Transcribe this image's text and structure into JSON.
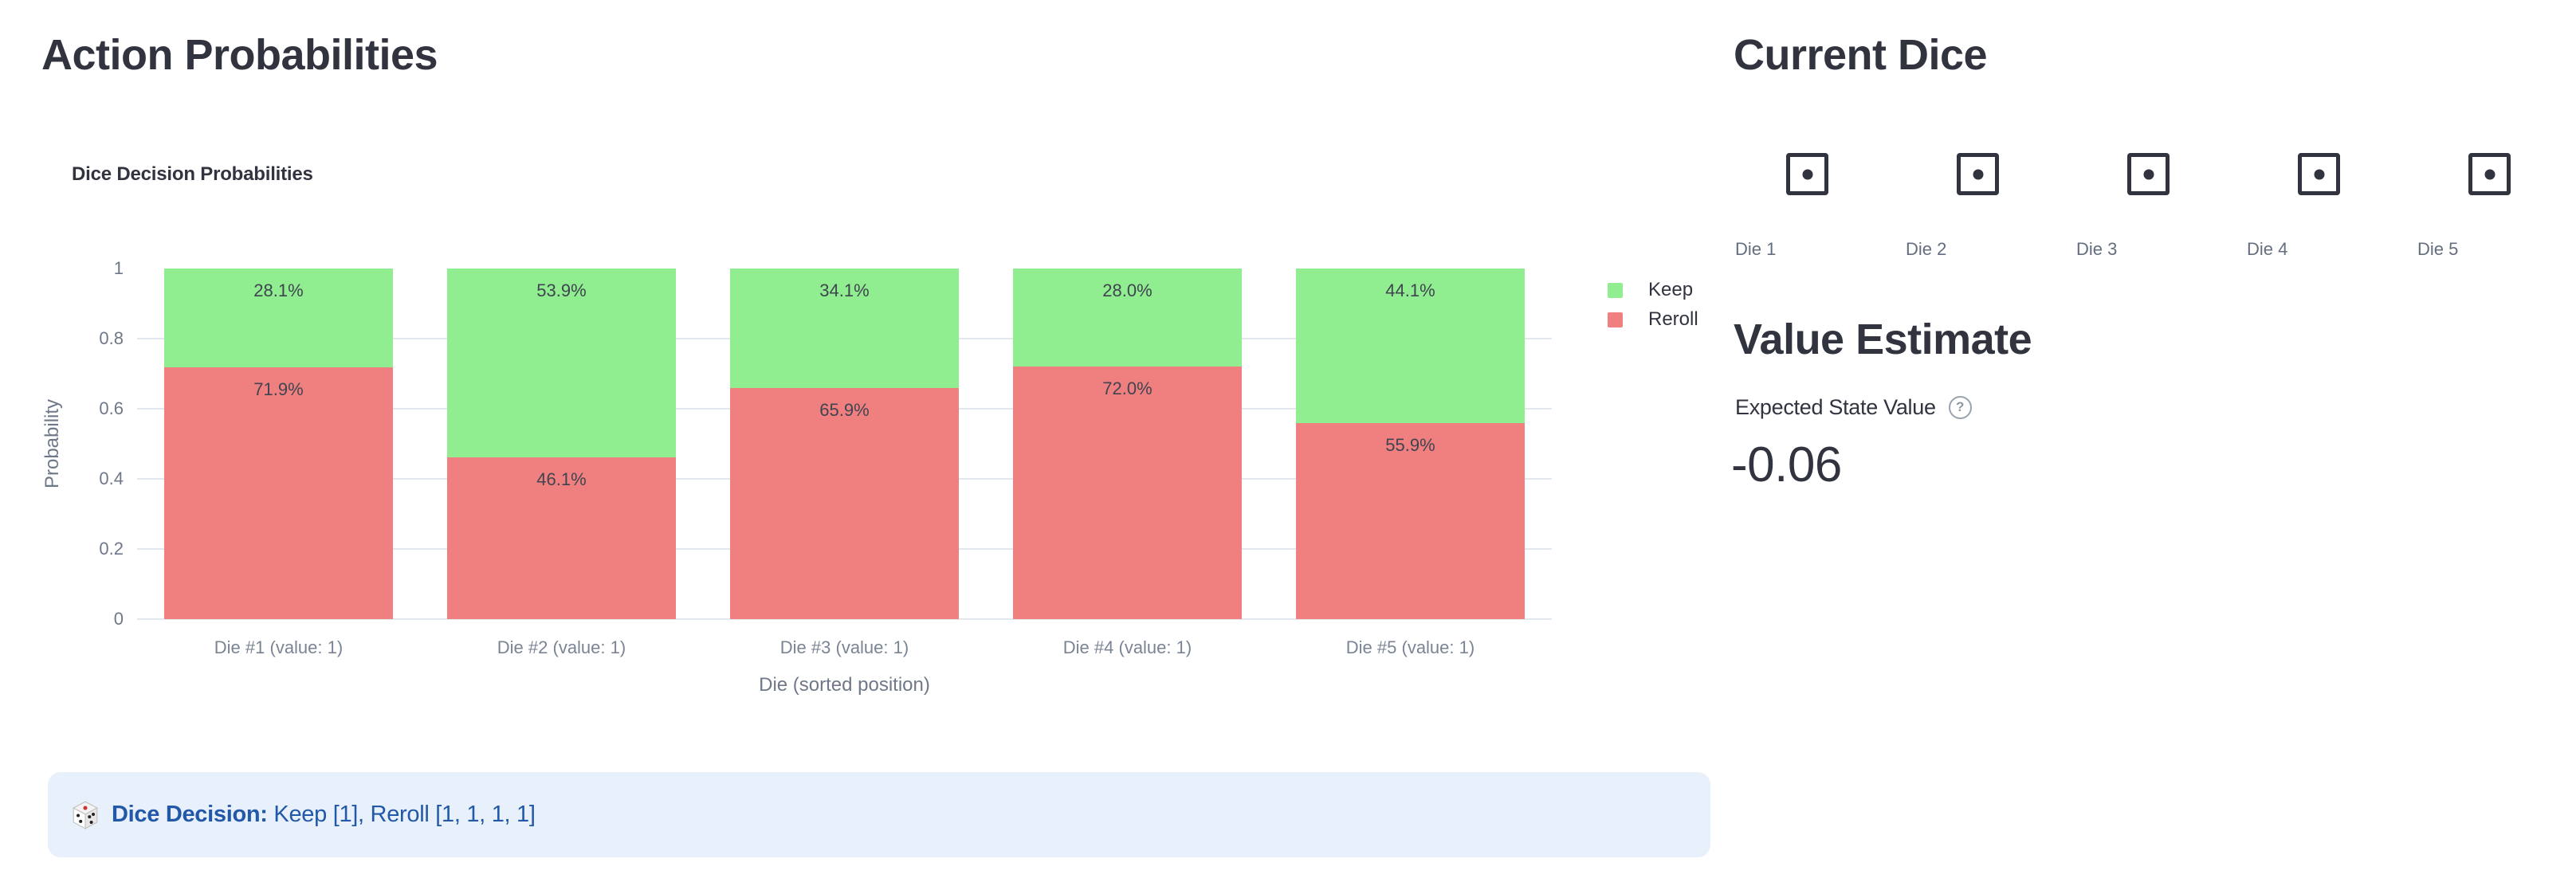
{
  "app": {
    "background": "#ffffff",
    "heading_color": "#31333F"
  },
  "left_panel": {
    "title": "Action Probabilities",
    "decision_note": {
      "icon": "game-die-emoji-icon",
      "label_bold": "Dice Decision:",
      "label_rest": " Keep [1], Reroll [1, 1, 1, 1]",
      "background": "#e8f0fb",
      "text_color": "#2158a8"
    }
  },
  "chart_data": {
    "type": "bar",
    "stacked": true,
    "title": "Dice Decision Probabilities",
    "xlabel": "Die (sorted position)",
    "ylabel": "Probability",
    "categories": [
      "Die #1 (value: 1)",
      "Die #2 (value: 1)",
      "Die #3 (value: 1)",
      "Die #4 (value: 1)",
      "Die #5 (value: 1)"
    ],
    "series": [
      {
        "name": "Keep",
        "color": "#90EE90",
        "values": [
          0.281,
          0.539,
          0.341,
          0.28,
          0.441
        ],
        "labels": [
          "28.1%",
          "53.9%",
          "34.1%",
          "28.0%",
          "44.1%"
        ]
      },
      {
        "name": "Reroll",
        "color": "#F08080",
        "values": [
          0.719,
          0.461,
          0.659,
          0.72,
          0.559
        ],
        "labels": [
          "71.9%",
          "46.1%",
          "65.9%",
          "72.0%",
          "55.9%"
        ]
      }
    ],
    "ylim": [
      0,
      1
    ],
    "yticks": [
      "0",
      "0.2",
      "0.4",
      "0.6",
      "0.8",
      "1"
    ],
    "grid": true,
    "legend_position": "right",
    "grid_color": "#e3e7ee",
    "axis_color": "#6f7888",
    "category_label_color": "#7a8494",
    "bar_label_color": "#3f4450"
  },
  "right_panel": {
    "current_dice": {
      "title": "Current Dice",
      "dice": [
        {
          "label": "Die 1",
          "value": 1
        },
        {
          "label": "Die 2",
          "value": 1
        },
        {
          "label": "Die 3",
          "value": 1
        },
        {
          "label": "Die 4",
          "value": 1
        },
        {
          "label": "Die 5",
          "value": 1
        }
      ]
    },
    "value_estimate": {
      "title": "Value Estimate",
      "metric_label": "Expected State Value",
      "help_icon": "help-question-circle-icon",
      "help_glyph": "?",
      "value": "-0.06"
    }
  }
}
